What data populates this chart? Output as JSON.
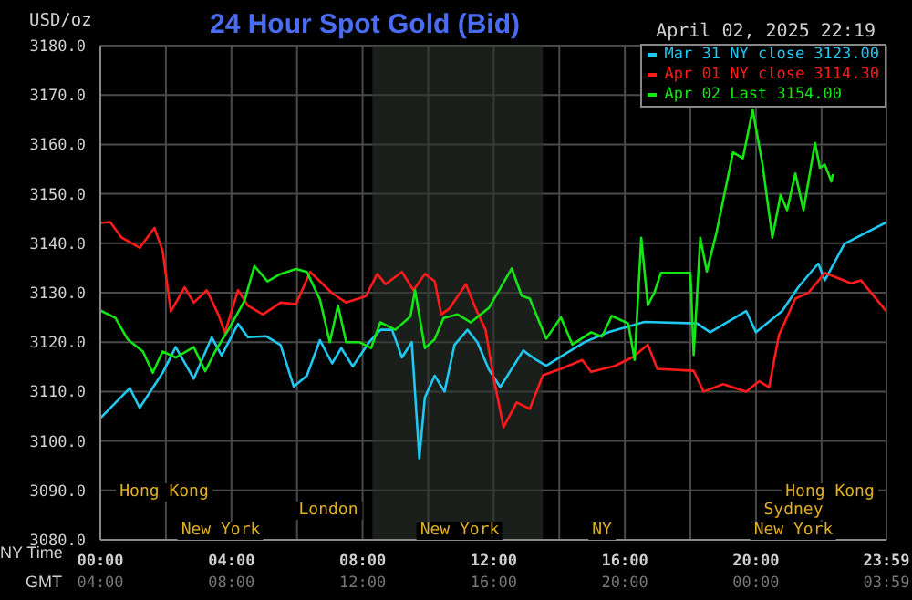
{
  "chart_data": {
    "type": "line",
    "title": "24 Hour Spot Gold (Bid)",
    "subtitle": "April 02, 2025 22:19",
    "ylabel": "USD/oz",
    "xlabel": "NY Time",
    "x2label": "GMT",
    "xlim": [
      0,
      23.98
    ],
    "xticks": [
      {
        "value": 0,
        "label": "00:00"
      },
      {
        "value": 2,
        "label": null
      },
      {
        "value": 4,
        "label": "04:00"
      },
      {
        "value": 6,
        "label": null
      },
      {
        "value": 8,
        "label": "08:00"
      },
      {
        "value": 10,
        "label": null
      },
      {
        "value": 12,
        "label": "12:00"
      },
      {
        "value": 14,
        "label": null
      },
      {
        "value": 16,
        "label": "16:00"
      },
      {
        "value": 18,
        "label": null
      },
      {
        "value": 20,
        "label": "20:00"
      },
      {
        "value": 22,
        "label": null
      },
      {
        "value": 23.98,
        "label": "23:59"
      }
    ],
    "x2lim": [
      "2025-04-02T04:00",
      "2025-04-03T03:59"
    ],
    "x2ticks": [
      {
        "value": "2025-04-02T04:00",
        "label": "04:00"
      },
      {
        "value": "2025-04-02T08:00",
        "label": "08:00"
      },
      {
        "value": "2025-04-02T12:00",
        "label": "12:00"
      },
      {
        "value": "2025-04-02T16:00",
        "label": "16:00"
      },
      {
        "value": "2025-04-02T20:00",
        "label": "20:00"
      },
      {
        "value": "2025-04-03T00:00",
        "label": "00:00"
      },
      {
        "value": "2025-04-03T03:59",
        "label": "03:59"
      }
    ],
    "ylim": [
      3080,
      3180
    ],
    "yticks": [
      {
        "value": 3080,
        "label": "3080.0"
      },
      {
        "value": 3090,
        "label": "3090.0"
      },
      {
        "value": 3100,
        "label": "3100.0"
      },
      {
        "value": 3110,
        "label": "3110.0"
      },
      {
        "value": 3120,
        "label": "3120.0"
      },
      {
        "value": 3130,
        "label": "3130.0"
      },
      {
        "value": 3140,
        "label": "3140.0"
      },
      {
        "value": 3150,
        "label": "3150.0"
      },
      {
        "value": 3160,
        "label": "3160.0"
      },
      {
        "value": 3170,
        "label": "3170.0"
      },
      {
        "value": 3180,
        "label": "3180.0"
      }
    ],
    "grid": true,
    "legend": "top right",
    "marker": "none",
    "line_style": "solid",
    "bands": [
      {
        "axis": "x",
        "from": 8.3,
        "to": 13.5,
        "color": "#2d332d"
      }
    ],
    "annotations": [
      "Hong Kong",
      "Hong Kong",
      "London",
      "Sydney",
      "New York",
      "New York",
      "NY",
      "New York"
    ],
    "series": [
      {
        "name": "Mar 31 NY close 3123.00",
        "color": "#1ec8f0",
        "x": [
          0,
          0.9,
          1.2,
          1.9,
          2.3,
          2.85,
          3.4,
          3.7,
          4.2,
          4.5,
          5.05,
          5.5,
          5.9,
          6.3,
          6.7,
          7.07,
          7.35,
          7.7,
          8.2,
          8.55,
          8.9,
          9.2,
          9.5,
          9.73,
          9.9,
          10.2,
          10.5,
          10.8,
          11.2,
          11.5,
          11.85,
          12.2,
          12.9,
          13.3,
          13.6,
          14.2,
          14.8,
          15.5,
          16.6,
          18.2,
          18.6,
          19.7,
          20.0,
          20.8,
          21.3,
          21.9,
          22.1,
          22.7,
          23.4,
          23.97
        ],
        "values": [
          3104.6,
          3110.7,
          3106.7,
          3113.8,
          3119.0,
          3112.6,
          3121.0,
          3117.3,
          3123.7,
          3121.0,
          3121.2,
          3119.4,
          3111.0,
          3113.2,
          3120.4,
          3115.7,
          3118.8,
          3115.1,
          3120.0,
          3122.5,
          3122.5,
          3116.9,
          3120.0,
          3096.5,
          3108.8,
          3113.2,
          3110.0,
          3119.4,
          3122.5,
          3120.0,
          3114.5,
          3110.9,
          3118.3,
          3116.4,
          3115.2,
          3117.7,
          3120.1,
          3122.0,
          3124.1,
          3123.8,
          3122.0,
          3126.3,
          3122.0,
          3126.3,
          3131.2,
          3135.9,
          3132.5,
          3139.9,
          3142.3,
          3144.2
        ]
      },
      {
        "name": "Apr 01 NY close 3114.30",
        "color": "#ff1a1a",
        "x": [
          0,
          0.3,
          0.64,
          1.2,
          1.65,
          1.9,
          2.15,
          2.57,
          2.85,
          3.25,
          3.6,
          3.8,
          4.2,
          4.5,
          4.96,
          5.5,
          5.97,
          6.4,
          7.07,
          7.5,
          8.1,
          8.45,
          8.7,
          9.2,
          9.55,
          9.9,
          10.2,
          10.4,
          10.65,
          11.15,
          11.45,
          11.75,
          12.0,
          12.3,
          12.7,
          13.1,
          13.5,
          14.05,
          14.7,
          14.97,
          15.7,
          16.25,
          16.7,
          16.99,
          18.1,
          18.4,
          19.0,
          19.7,
          20.1,
          20.4,
          20.7,
          21.2,
          21.6,
          22.1,
          22.9,
          23.2,
          23.97
        ],
        "values": [
          3144.1,
          3144.3,
          3141.2,
          3139.1,
          3143.1,
          3138.5,
          3126.2,
          3131.1,
          3128.0,
          3130.5,
          3125.6,
          3121.9,
          3130.5,
          3127.4,
          3125.6,
          3128.0,
          3127.7,
          3134.2,
          3129.9,
          3128.0,
          3129.3,
          3133.8,
          3131.7,
          3134.2,
          3130.5,
          3133.8,
          3132.3,
          3125.6,
          3126.8,
          3131.7,
          3126.8,
          3122.5,
          3112.7,
          3102.8,
          3107.8,
          3106.5,
          3113.3,
          3114.6,
          3116.4,
          3114.0,
          3115.2,
          3117.0,
          3119.5,
          3114.6,
          3114.2,
          3110.0,
          3111.5,
          3110.0,
          3112.1,
          3110.9,
          3121.4,
          3128.8,
          3130.0,
          3134.0,
          3131.9,
          3132.5,
          3126.3
        ]
      },
      {
        "name": "Apr 02 Last 3154.00",
        "color": "#14e614",
        "x": [
          0,
          0.46,
          0.83,
          1.3,
          1.6,
          1.9,
          2.3,
          2.85,
          3.2,
          3.5,
          3.95,
          4.4,
          4.7,
          5.1,
          5.5,
          5.97,
          6.3,
          6.7,
          7.0,
          7.25,
          7.5,
          7.9,
          8.26,
          8.54,
          9.0,
          9.46,
          9.6,
          9.9,
          10.2,
          10.47,
          10.9,
          11.3,
          11.85,
          12.55,
          12.85,
          13.1,
          13.6,
          14.05,
          14.4,
          14.97,
          15.3,
          15.6,
          16.1,
          16.3,
          16.5,
          16.7,
          16.9,
          17.1,
          18.0,
          18.1,
          18.3,
          18.5,
          18.8,
          19.3,
          19.6,
          19.9,
          20.2,
          20.5,
          20.75,
          20.95,
          21.2,
          21.45,
          21.8,
          21.95,
          22.1,
          22.3,
          22.35
        ],
        "values": [
          3126.4,
          3124.9,
          3120.6,
          3118.1,
          3113.8,
          3118.1,
          3116.9,
          3119.0,
          3114.1,
          3118.1,
          3123.0,
          3128.4,
          3135.4,
          3132.3,
          3133.8,
          3134.8,
          3134.2,
          3128.6,
          3120.0,
          3127.4,
          3120.0,
          3120.0,
          3118.8,
          3124.0,
          3122.5,
          3125.2,
          3130.5,
          3118.8,
          3120.6,
          3124.9,
          3125.6,
          3124.0,
          3126.9,
          3134.9,
          3129.4,
          3128.8,
          3120.7,
          3125.0,
          3119.5,
          3122.0,
          3121.1,
          3125.3,
          3123.8,
          3116.4,
          3141.1,
          3127.5,
          3130.0,
          3134.0,
          3134.0,
          3117.4,
          3141.1,
          3134.3,
          3142.3,
          3158.4,
          3157.2,
          3167.0,
          3155.9,
          3141.1,
          3149.8,
          3146.7,
          3154.1,
          3146.7,
          3160.3,
          3155.3,
          3155.9,
          3152.5,
          3154.0
        ]
      }
    ]
  }
}
